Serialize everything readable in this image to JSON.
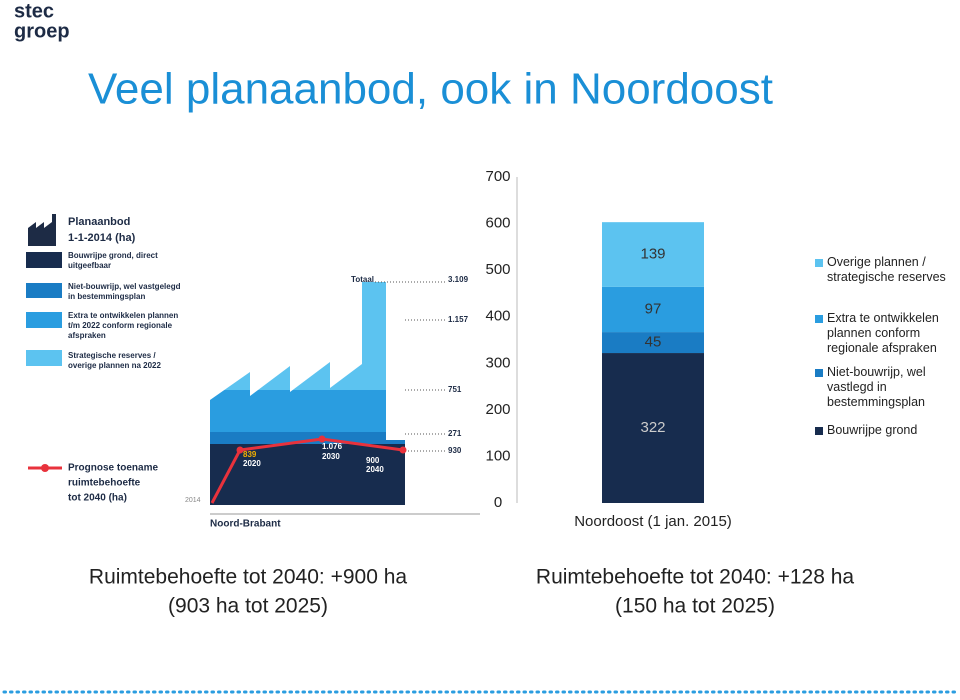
{
  "logo": [
    "stec",
    "groep"
  ],
  "title": "Veel planaanbod, ook in Noordoost",
  "infographic": {
    "heading": [
      "Planaanbod",
      "1-1-2014 (ha)"
    ],
    "legend": [
      [
        "Bouwrijpe grond, direct",
        "uitgeefbaar"
      ],
      [
        "Niet-bouwrijp, wel vastgelegd",
        "in bestemmingsplan"
      ],
      [
        "Extra te ontwikkelen plannen",
        "t/m 2022 conform regionale",
        "afspraken"
      ],
      [
        "Strategische reserves /",
        "overige plannen na 2022"
      ]
    ],
    "total_label": "Totaal",
    "total": "3.109",
    "layers": [
      "1.157",
      "751",
      "271",
      "930"
    ],
    "prognosis_title": [
      "Prognose toename",
      "ruimtebehoefte",
      "tot 2040 (ha)"
    ],
    "prognosis": [
      [
        "839",
        "2020"
      ],
      [
        "1.076",
        "2030"
      ],
      [
        "900",
        "2040"
      ]
    ],
    "start_year": "2014",
    "region": "Noord-Brabant"
  },
  "chart_data": {
    "type": "stacked_bar",
    "categories": [
      "Noordoost (1 jan. 2015)"
    ],
    "series": [
      {
        "name": "Bouwrijpe grond",
        "color": "#172c4e",
        "values": [
          322
        ]
      },
      {
        "name": "Niet-bouwrijp, wel vastlegd in bestemmingsplan",
        "color": "#1a7cc4",
        "values": [
          45
        ]
      },
      {
        "name": "Extra te ontwikkelen plannen conform regionale afspraken",
        "color": "#2a9de0",
        "values": [
          97
        ]
      },
      {
        "name": "Overige plannen / strategische reserves",
        "color": "#5cc3f0",
        "values": [
          139
        ]
      }
    ],
    "ylim": [
      0,
      700
    ],
    "yticks": [
      0,
      100,
      200,
      300,
      400,
      500,
      600,
      700
    ],
    "grid": false,
    "legend": "right"
  },
  "captions": [
    [
      "Ruimtebehoefte tot 2040: +900 ha",
      "(903 ha tot 2025)"
    ],
    [
      "Ruimtebehoefte tot 2040: +128 ha",
      "(150 ha tot 2025)"
    ]
  ]
}
